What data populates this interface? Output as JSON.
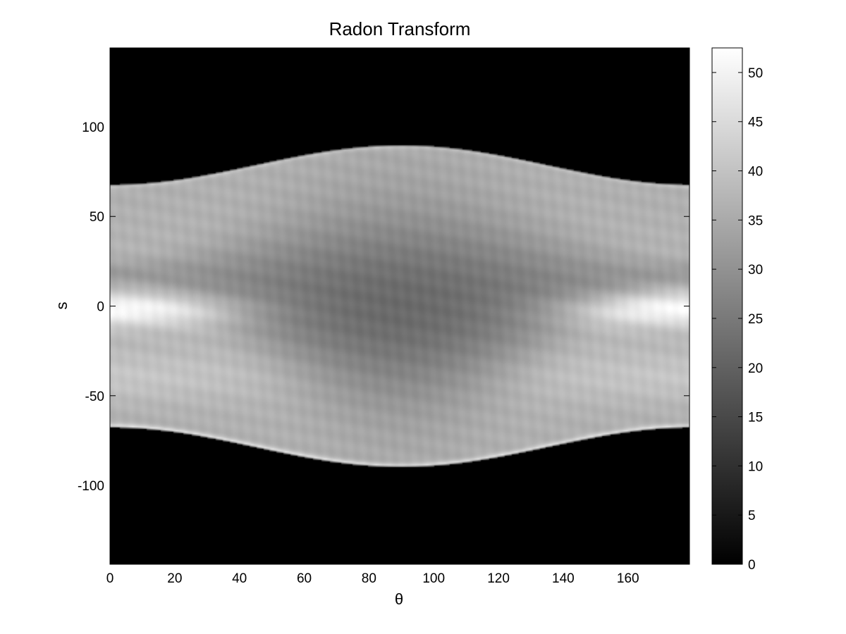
{
  "chart_data": {
    "type": "heatmap",
    "title": "Radon Transform",
    "xlabel": "θ",
    "ylabel": "s",
    "xlim": [
      0,
      179
    ],
    "ylim": [
      -144,
      144
    ],
    "x_ticks": [
      0,
      20,
      40,
      60,
      80,
      100,
      120,
      140,
      160
    ],
    "y_ticks": [
      -100,
      -50,
      0,
      50,
      100
    ],
    "colormap": "gray",
    "clim": [
      0,
      52.5
    ],
    "colorbar": {
      "ticks": [
        0,
        5,
        10,
        15,
        20,
        25,
        30,
        35,
        40,
        45,
        50
      ],
      "position": "right"
    },
    "grid": false,
    "background_color": "#000000",
    "sinogram_features": {
      "support_half_width_at_0_deg": 68,
      "support_half_width_at_90_deg": 90,
      "bright_band_center_s": 0,
      "bright_band_peak_value": 52,
      "dark_core_value": 22,
      "outer_band_value": 38
    }
  }
}
